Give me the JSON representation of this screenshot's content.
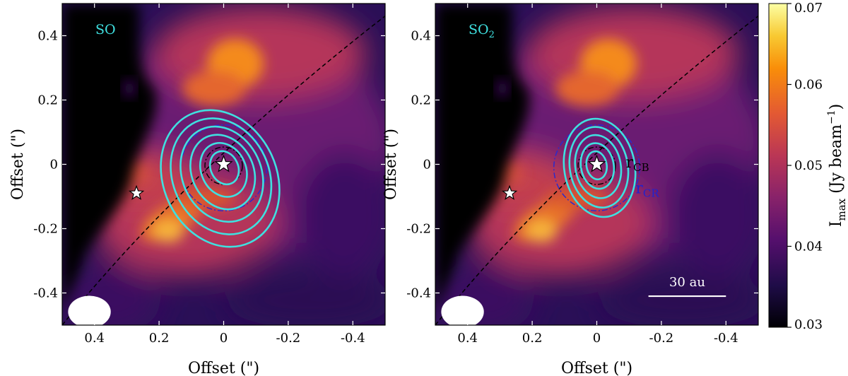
{
  "chart_data": {
    "type": "heatmap",
    "colormap": "inferno",
    "colorbar": {
      "label": "I",
      "label_sub": "max",
      "label_rest": " (Jy beam",
      "label_sup": "−1",
      "label_close": ")",
      "range": [
        0.03,
        0.07
      ],
      "ticks": [
        0.03,
        0.04,
        0.05,
        0.06,
        0.07
      ],
      "tick_labels": [
        "0.03",
        "0.04",
        "0.05",
        "0.06",
        "0.07"
      ]
    },
    "panels": [
      {
        "title": "SO",
        "title_sub": "",
        "xlabel": "Offset (\")",
        "ylabel": "Offset (\")",
        "xlim": [
          0.5,
          -0.5
        ],
        "ylim": [
          -0.5,
          0.5
        ],
        "xticks": [
          0.4,
          0.2,
          0,
          -0.2,
          -0.4
        ],
        "xtick_labels": [
          "0.4",
          "0.2",
          "0",
          "-0.2",
          "-0.4"
        ],
        "yticks": [
          -0.4,
          -0.2,
          0,
          0.2,
          0.4
        ],
        "ytick_labels": [
          "-0.4",
          "-0.2",
          "0",
          "0.2",
          "0.4"
        ],
        "contour_levels": 6,
        "annotations": [],
        "scalebar": null
      },
      {
        "title": "SO",
        "title_sub": "2",
        "xlabel": "Offset (\")",
        "ylabel": "Offset (\")",
        "xlim": [
          0.5,
          -0.5
        ],
        "ylim": [
          -0.5,
          0.5
        ],
        "xticks": [
          0.4,
          0.2,
          0,
          -0.2,
          -0.4
        ],
        "xtick_labels": [
          "0.4",
          "0.2",
          "0",
          "-0.2",
          "-0.4"
        ],
        "yticks": [
          -0.4,
          -0.2,
          0,
          0.2,
          0.4
        ],
        "ytick_labels": [
          "-0.4",
          "-0.2",
          "0",
          "0.2",
          "0.4"
        ],
        "contour_levels": 5,
        "annotations": [
          {
            "text": "r",
            "sub": "CB",
            "color": "#000000",
            "x": -0.09,
            "y": -0.01
          },
          {
            "text": "r",
            "sub": "CR",
            "color": "#2222cc",
            "x": -0.12,
            "y": -0.09
          }
        ],
        "scalebar": {
          "label": "30 au",
          "x_from": -0.16,
          "x_to": -0.4,
          "y": -0.41
        }
      }
    ],
    "markers": {
      "source_main": {
        "x": 0,
        "y": 0
      },
      "source_secondary": {
        "x": 0.27,
        "y": -0.09
      }
    },
    "circles": {
      "inner_radius": 0.058,
      "outer_radius": 0.133
    },
    "beam": {
      "x": 0.42,
      "y": -0.45,
      "major": 0.066,
      "minor": 0.05
    }
  }
}
